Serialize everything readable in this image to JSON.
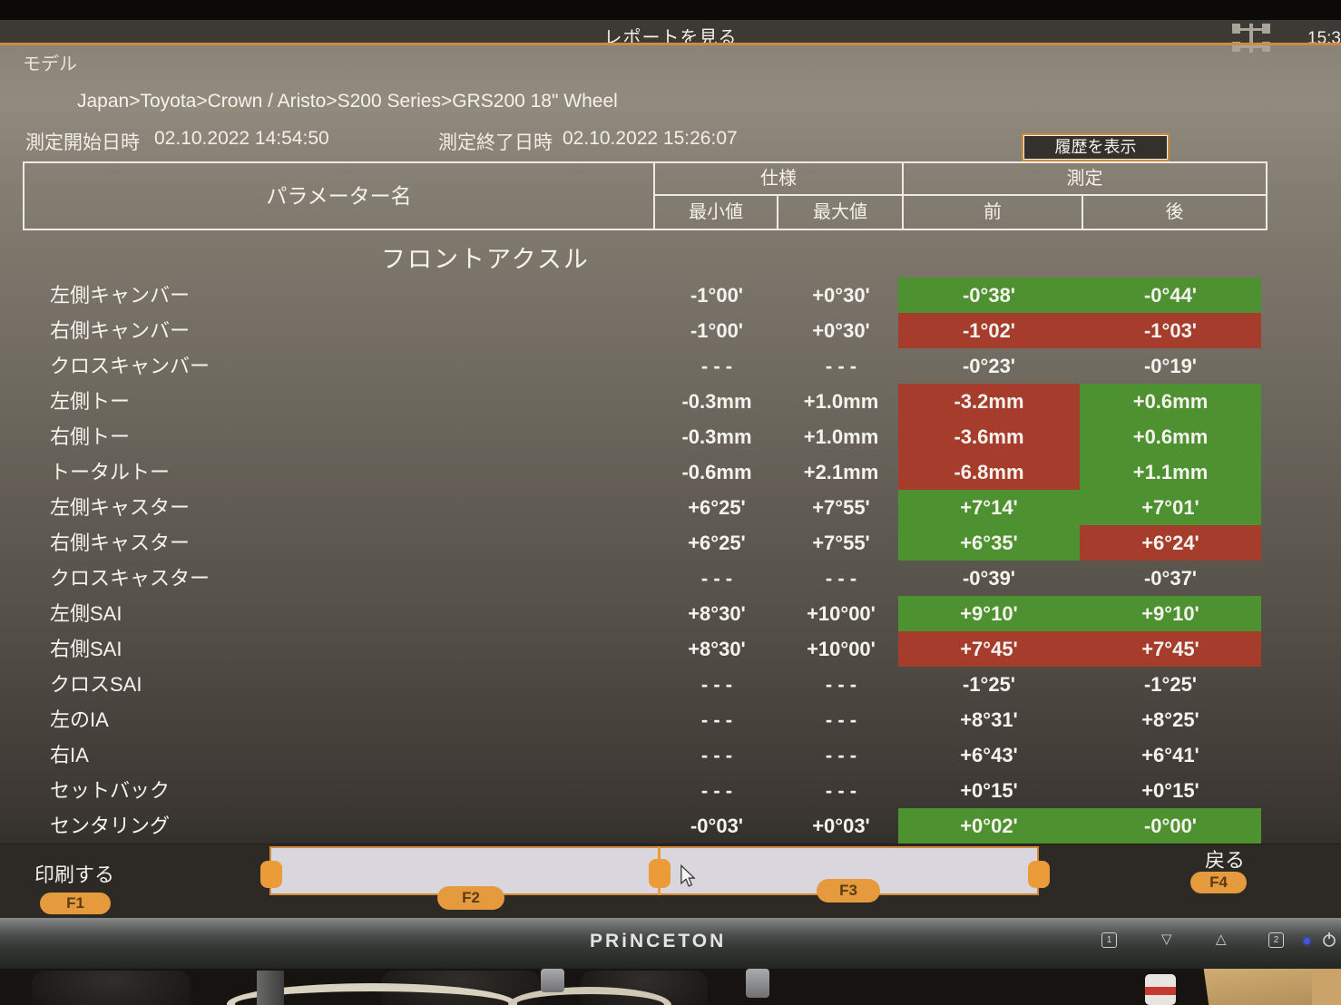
{
  "titlebar": {
    "title": "レポートを見る",
    "clock": "15:3"
  },
  "header": {
    "model_label": "モデル",
    "breadcrumb": "Japan>Toyota>Crown / Aristo>S200 Series>GRS200 18\" Wheel",
    "start_label": "測定開始日時",
    "start_value": "02.10.2022 14:54:50",
    "end_label": "測定終了日時",
    "end_value": "02.10.2022 15:26:07",
    "history_button": "履歴を表示"
  },
  "table": {
    "param_header": "パラメーター名",
    "spec_header": "仕様",
    "meas_header": "測定",
    "min_header": "最小値",
    "max_header": "最大値",
    "before_header": "前",
    "after_header": "後",
    "section": "フロントアクスル",
    "rows": [
      {
        "label": "左側キャンバー",
        "min": "-1°00'",
        "max": "+0°30'",
        "before": "-0°38'",
        "after": "-0°44'",
        "before_state": "ok",
        "after_state": "ok"
      },
      {
        "label": "右側キャンバー",
        "min": "-1°00'",
        "max": "+0°30'",
        "before": "-1°02'",
        "after": "-1°03'",
        "before_state": "ng",
        "after_state": "ng"
      },
      {
        "label": "クロスキャンバー",
        "min": "- - -",
        "max": "- - -",
        "before": "-0°23'",
        "after": "-0°19'",
        "before_state": "none",
        "after_state": "none"
      },
      {
        "label": "左側トー",
        "min": "-0.3mm",
        "max": "+1.0mm",
        "before": "-3.2mm",
        "after": "+0.6mm",
        "before_state": "ng",
        "after_state": "ok"
      },
      {
        "label": "右側トー",
        "min": "-0.3mm",
        "max": "+1.0mm",
        "before": "-3.6mm",
        "after": "+0.6mm",
        "before_state": "ng",
        "after_state": "ok"
      },
      {
        "label": "トータルトー",
        "min": "-0.6mm",
        "max": "+2.1mm",
        "before": "-6.8mm",
        "after": "+1.1mm",
        "before_state": "ng",
        "after_state": "ok"
      },
      {
        "label": "左側キャスター",
        "min": "+6°25'",
        "max": "+7°55'",
        "before": "+7°14'",
        "after": "+7°01'",
        "before_state": "ok",
        "after_state": "ok"
      },
      {
        "label": "右側キャスター",
        "min": "+6°25'",
        "max": "+7°55'",
        "before": "+6°35'",
        "after": "+6°24'",
        "before_state": "ok",
        "after_state": "ng"
      },
      {
        "label": "クロスキャスター",
        "min": "- - -",
        "max": "- - -",
        "before": "-0°39'",
        "after": "-0°37'",
        "before_state": "none",
        "after_state": "none"
      },
      {
        "label": "左側SAI",
        "min": "+8°30'",
        "max": "+10°00'",
        "before": "+9°10'",
        "after": "+9°10'",
        "before_state": "ok",
        "after_state": "ok"
      },
      {
        "label": "右側SAI",
        "min": "+8°30'",
        "max": "+10°00'",
        "before": "+7°45'",
        "after": "+7°45'",
        "before_state": "ng",
        "after_state": "ng"
      },
      {
        "label": "クロスSAI",
        "min": "- - -",
        "max": "- - -",
        "before": "-1°25'",
        "after": "-1°25'",
        "before_state": "none",
        "after_state": "none"
      },
      {
        "label": "左のIA",
        "min": "- - -",
        "max": "- - -",
        "before": "+8°31'",
        "after": "+8°25'",
        "before_state": "none",
        "after_state": "none"
      },
      {
        "label": "右IA",
        "min": "- - -",
        "max": "- - -",
        "before": "+6°43'",
        "after": "+6°41'",
        "before_state": "none",
        "after_state": "none"
      },
      {
        "label": "セットバック",
        "min": "- - -",
        "max": "- - -",
        "before": "+0°15'",
        "after": "+0°15'",
        "before_state": "none",
        "after_state": "none"
      },
      {
        "label": "センタリング",
        "min": "-0°03'",
        "max": "+0°03'",
        "before": "+0°02'",
        "after": "-0°00'",
        "before_state": "ok",
        "after_state": "ok"
      }
    ]
  },
  "footer": {
    "print_label": "印刷する",
    "back_label": "戻る",
    "f1": "F1",
    "f2": "F2",
    "f3": "F3",
    "f4": "F4"
  },
  "bezel": {
    "brand": "PRiNCETON",
    "btn_input1": "1",
    "btn_down": "▽",
    "btn_up": "△",
    "btn_input2": "2",
    "power_icon": "power"
  },
  "colors": {
    "ok_green": "#4e9130",
    "ng_red": "#a63d2c",
    "accent_orange": "#cf8b41",
    "pill_orange": "#e59a3e"
  }
}
